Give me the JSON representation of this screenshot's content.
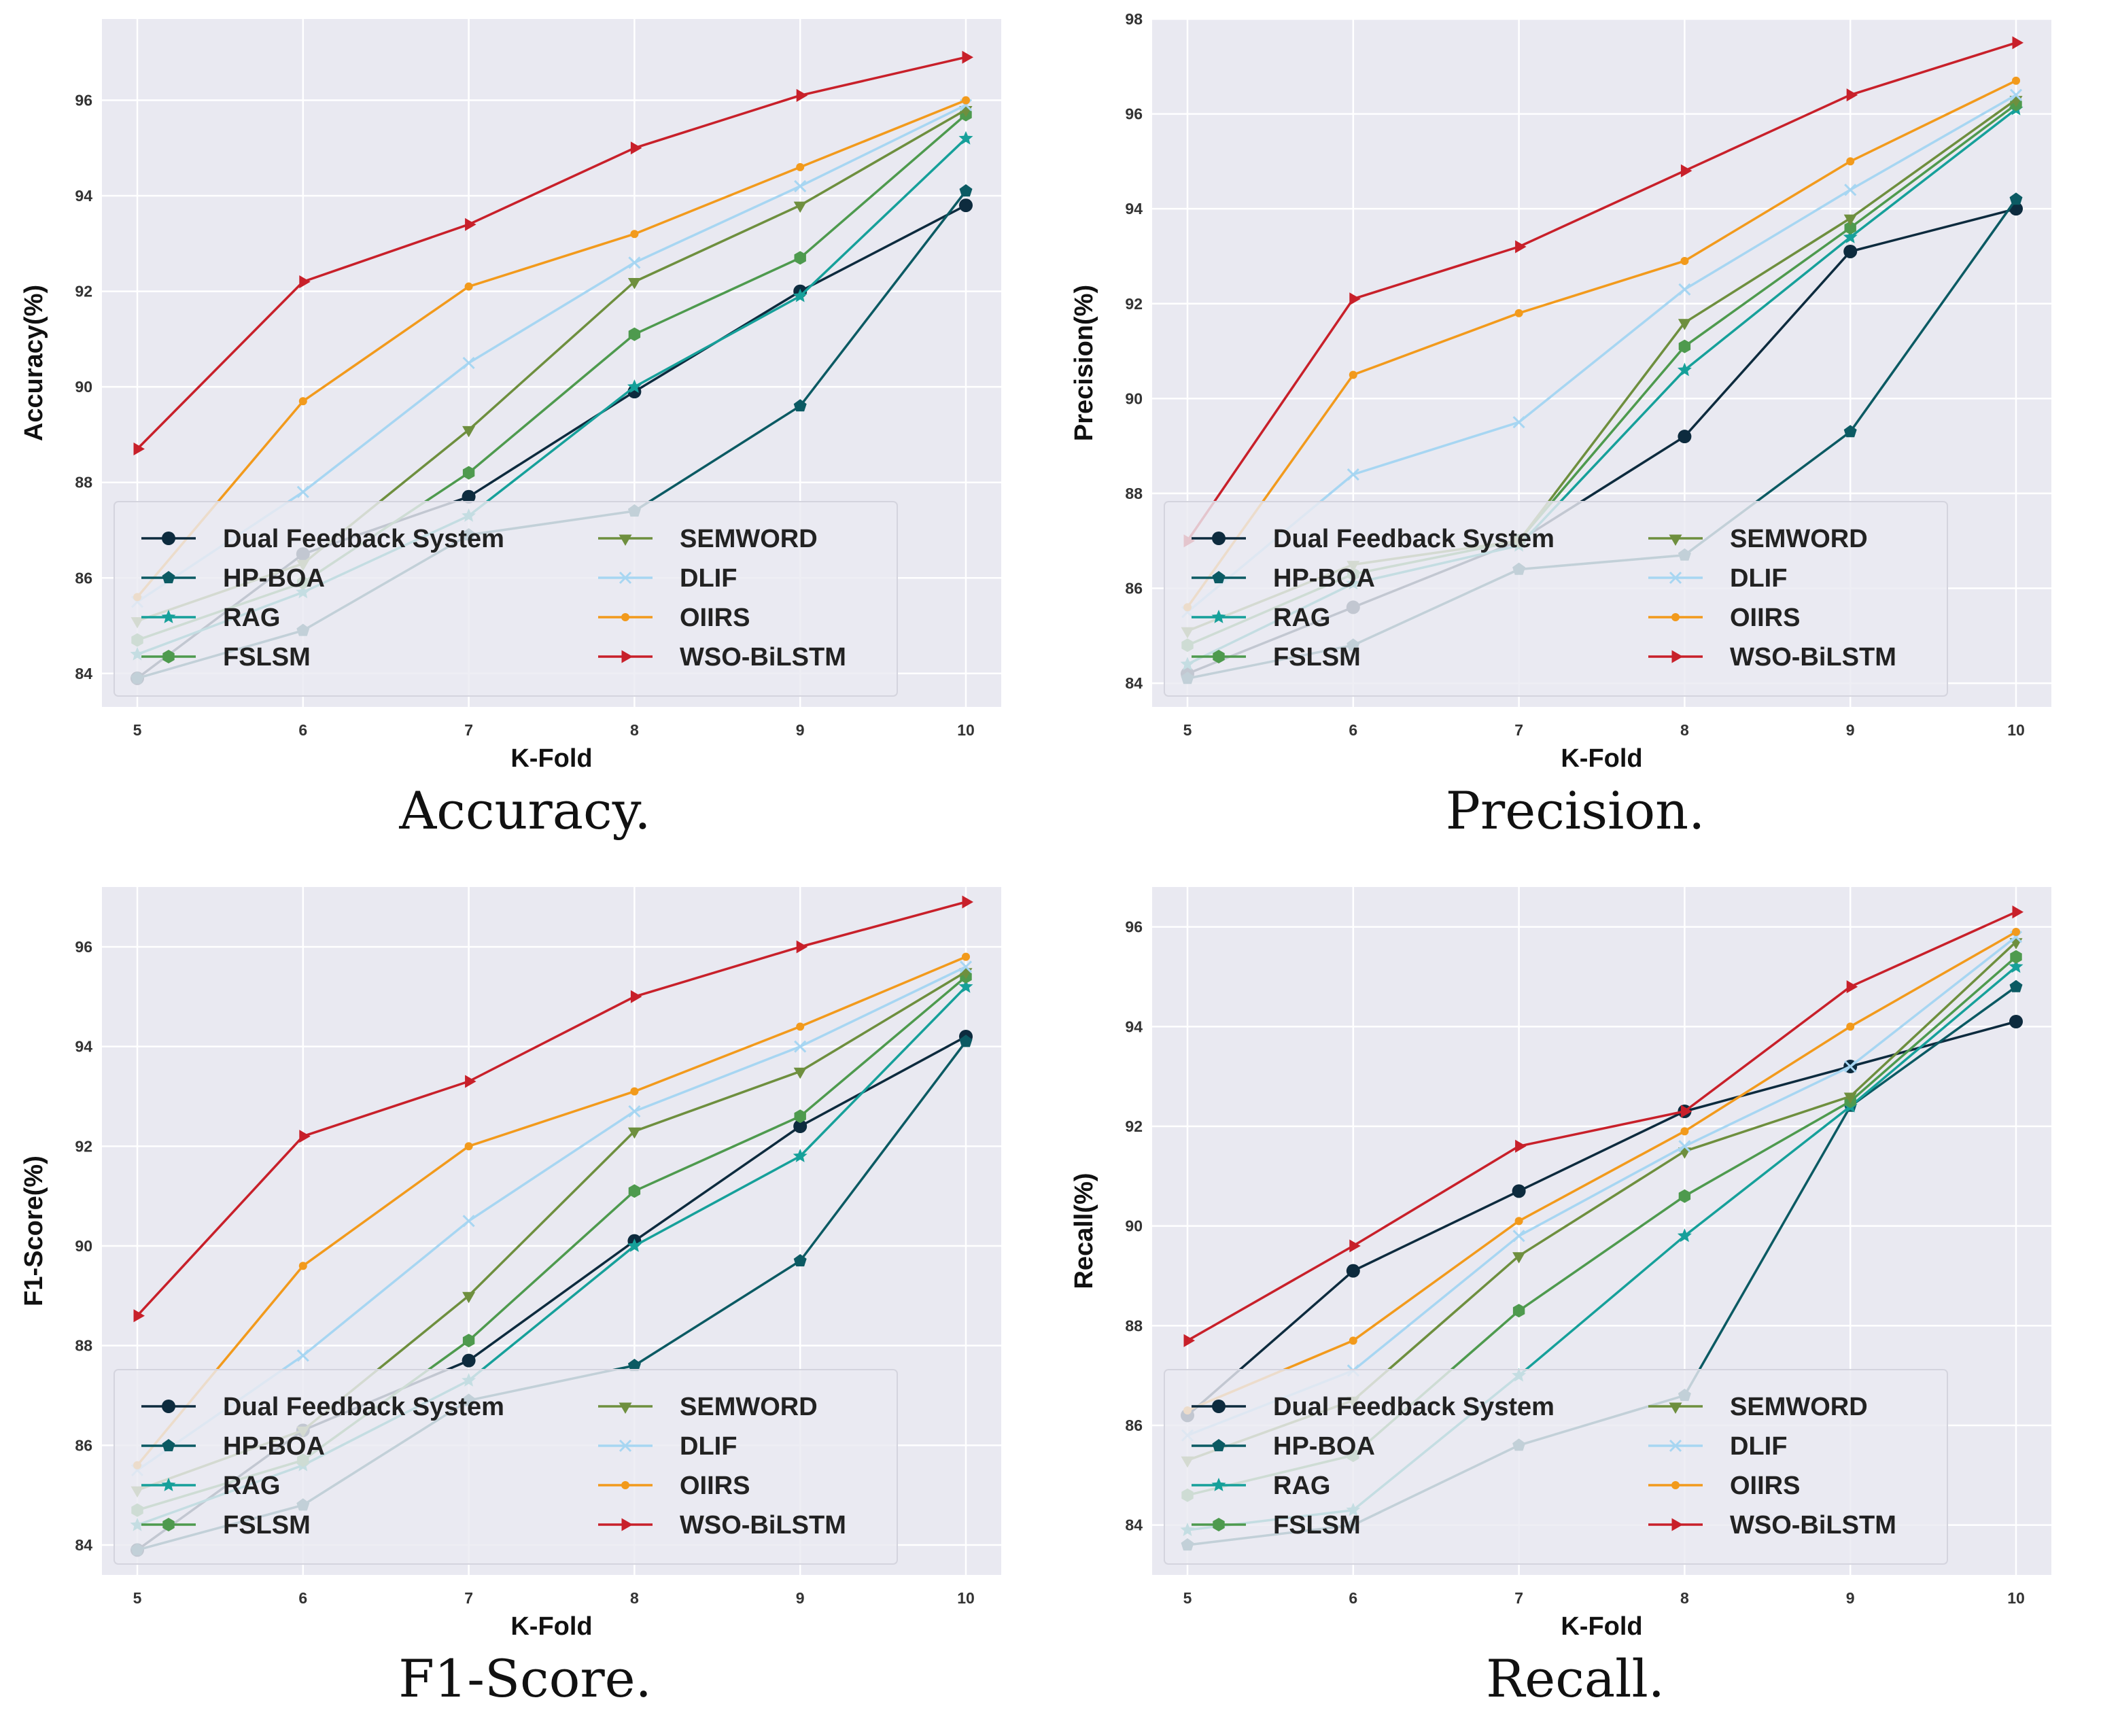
{
  "chart_data": [
    {
      "type": "line",
      "caption": "Accuracy.",
      "xlabel": "K-Fold",
      "ylabel": "Accuracy(%)",
      "x": [
        5,
        6,
        7,
        8,
        9,
        10
      ],
      "ylim": [
        83.3,
        97.7
      ],
      "yticks": [
        84,
        86,
        88,
        90,
        92,
        94,
        96
      ],
      "series": [
        {
          "name": "Dual Feedback System",
          "color": "#0d2b3e",
          "marker": "circle",
          "values": [
            83.9,
            86.5,
            87.7,
            89.9,
            92.0,
            93.8
          ]
        },
        {
          "name": "HP-BOA",
          "color": "#0b5a63",
          "marker": "pentagon",
          "values": [
            83.9,
            84.9,
            86.9,
            87.4,
            89.6,
            94.1
          ]
        },
        {
          "name": "RAG",
          "color": "#16a09a",
          "marker": "star",
          "values": [
            84.4,
            85.7,
            87.3,
            90.0,
            91.9,
            95.2
          ]
        },
        {
          "name": "FSLSM",
          "color": "#4e9a4e",
          "marker": "hexagon",
          "values": [
            84.7,
            85.9,
            88.2,
            91.1,
            92.7,
            95.7
          ]
        },
        {
          "name": "SEMWORD",
          "color": "#6e8f3e",
          "marker": "triangle-down",
          "values": [
            85.1,
            86.3,
            89.1,
            92.2,
            93.8,
            95.8
          ]
        },
        {
          "name": "DLIF",
          "color": "#a7d6f2",
          "marker": "x",
          "values": [
            85.5,
            87.8,
            90.5,
            92.6,
            94.2,
            95.9
          ]
        },
        {
          "name": "OIIRS",
          "color": "#f29a1c",
          "marker": "dot",
          "values": [
            85.6,
            89.7,
            92.1,
            93.2,
            94.6,
            96.0
          ]
        },
        {
          "name": "WSO-BiLSTM",
          "color": "#c8202a",
          "marker": "triangle-right",
          "values": [
            88.7,
            92.2,
            93.4,
            95.0,
            96.1,
            96.9
          ]
        }
      ]
    },
    {
      "type": "line",
      "caption": "Precision.",
      "xlabel": "K-Fold",
      "ylabel": "Precision(%)",
      "x": [
        5,
        6,
        7,
        8,
        9,
        10
      ],
      "ylim": [
        83.5,
        98.0
      ],
      "yticks": [
        84,
        86,
        88,
        90,
        92,
        94,
        96,
        98
      ],
      "series": [
        {
          "name": "Dual Feedback System",
          "color": "#0d2b3e",
          "marker": "circle",
          "values": [
            84.2,
            85.6,
            87.0,
            89.2,
            93.1,
            94.0
          ]
        },
        {
          "name": "HP-BOA",
          "color": "#0b5a63",
          "marker": "pentagon",
          "values": [
            84.1,
            84.8,
            86.4,
            86.7,
            89.3,
            94.2
          ]
        },
        {
          "name": "RAG",
          "color": "#16a09a",
          "marker": "star",
          "values": [
            84.4,
            86.1,
            86.9,
            90.6,
            93.4,
            96.1
          ]
        },
        {
          "name": "FSLSM",
          "color": "#4e9a4e",
          "marker": "hexagon",
          "values": [
            84.8,
            86.3,
            87.0,
            91.1,
            93.6,
            96.2
          ]
        },
        {
          "name": "SEMWORD",
          "color": "#6e8f3e",
          "marker": "triangle-down",
          "values": [
            85.1,
            86.5,
            87.0,
            91.6,
            93.8,
            96.3
          ]
        },
        {
          "name": "DLIF",
          "color": "#a7d6f2",
          "marker": "x",
          "values": [
            85.5,
            88.4,
            89.5,
            92.3,
            94.4,
            96.4
          ]
        },
        {
          "name": "OIIRS",
          "color": "#f29a1c",
          "marker": "dot",
          "values": [
            85.6,
            90.5,
            91.8,
            92.9,
            95.0,
            96.7
          ]
        },
        {
          "name": "WSO-BiLSTM",
          "color": "#c8202a",
          "marker": "triangle-right",
          "values": [
            87.0,
            92.1,
            93.2,
            94.8,
            96.4,
            97.5
          ]
        }
      ]
    },
    {
      "type": "line",
      "caption": "F1-Score.",
      "xlabel": "K-Fold",
      "ylabel": "F1-Score(%)",
      "x": [
        5,
        6,
        7,
        8,
        9,
        10
      ],
      "ylim": [
        83.4,
        97.2
      ],
      "yticks": [
        84,
        86,
        88,
        90,
        92,
        94,
        96
      ],
      "series": [
        {
          "name": "Dual Feedback System",
          "color": "#0d2b3e",
          "marker": "circle",
          "values": [
            83.9,
            86.3,
            87.7,
            90.1,
            92.4,
            94.2
          ]
        },
        {
          "name": "HP-BOA",
          "color": "#0b5a63",
          "marker": "pentagon",
          "values": [
            83.9,
            84.8,
            86.9,
            87.6,
            89.7,
            94.1
          ]
        },
        {
          "name": "RAG",
          "color": "#16a09a",
          "marker": "star",
          "values": [
            84.4,
            85.6,
            87.3,
            90.0,
            91.8,
            95.2
          ]
        },
        {
          "name": "FSLSM",
          "color": "#4e9a4e",
          "marker": "hexagon",
          "values": [
            84.7,
            85.7,
            88.1,
            91.1,
            92.6,
            95.4
          ]
        },
        {
          "name": "SEMWORD",
          "color": "#6e8f3e",
          "marker": "triangle-down",
          "values": [
            85.1,
            86.3,
            89.0,
            92.3,
            93.5,
            95.5
          ]
        },
        {
          "name": "DLIF",
          "color": "#a7d6f2",
          "marker": "x",
          "values": [
            85.5,
            87.8,
            90.5,
            92.7,
            94.0,
            95.6
          ]
        },
        {
          "name": "OIIRS",
          "color": "#f29a1c",
          "marker": "dot",
          "values": [
            85.6,
            89.6,
            92.0,
            93.1,
            94.4,
            95.8
          ]
        },
        {
          "name": "WSO-BiLSTM",
          "color": "#c8202a",
          "marker": "triangle-right",
          "values": [
            88.6,
            92.2,
            93.3,
            95.0,
            96.0,
            96.9
          ]
        }
      ]
    },
    {
      "type": "line",
      "caption": "Recall.",
      "xlabel": "K-Fold",
      "ylabel": "Recall(%)",
      "x": [
        5,
        6,
        7,
        8,
        9,
        10
      ],
      "ylim": [
        83.0,
        96.8
      ],
      "yticks": [
        84,
        86,
        88,
        90,
        92,
        94,
        96
      ],
      "series": [
        {
          "name": "Dual Feedback System",
          "color": "#0d2b3e",
          "marker": "circle",
          "values": [
            86.2,
            89.1,
            90.7,
            92.3,
            93.2,
            94.1
          ]
        },
        {
          "name": "HP-BOA",
          "color": "#0b5a63",
          "marker": "pentagon",
          "values": [
            83.6,
            84.0,
            85.6,
            86.6,
            92.4,
            94.8
          ]
        },
        {
          "name": "RAG",
          "color": "#16a09a",
          "marker": "star",
          "values": [
            83.9,
            84.3,
            87.0,
            89.8,
            92.4,
            95.2
          ]
        },
        {
          "name": "FSLSM",
          "color": "#4e9a4e",
          "marker": "hexagon",
          "values": [
            84.6,
            85.4,
            88.3,
            90.6,
            92.5,
            95.4
          ]
        },
        {
          "name": "SEMWORD",
          "color": "#6e8f3e",
          "marker": "triangle-down",
          "values": [
            85.3,
            86.5,
            89.4,
            91.5,
            92.6,
            95.7
          ]
        },
        {
          "name": "DLIF",
          "color": "#a7d6f2",
          "marker": "x",
          "values": [
            85.8,
            87.1,
            89.8,
            91.6,
            93.2,
            95.8
          ]
        },
        {
          "name": "OIIRS",
          "color": "#f29a1c",
          "marker": "dot",
          "values": [
            86.3,
            87.7,
            90.1,
            91.9,
            94.0,
            95.9
          ]
        },
        {
          "name": "WSO-BiLSTM",
          "color": "#c8202a",
          "marker": "triangle-right",
          "values": [
            87.7,
            89.6,
            91.6,
            92.3,
            94.8,
            96.3
          ]
        }
      ]
    }
  ]
}
